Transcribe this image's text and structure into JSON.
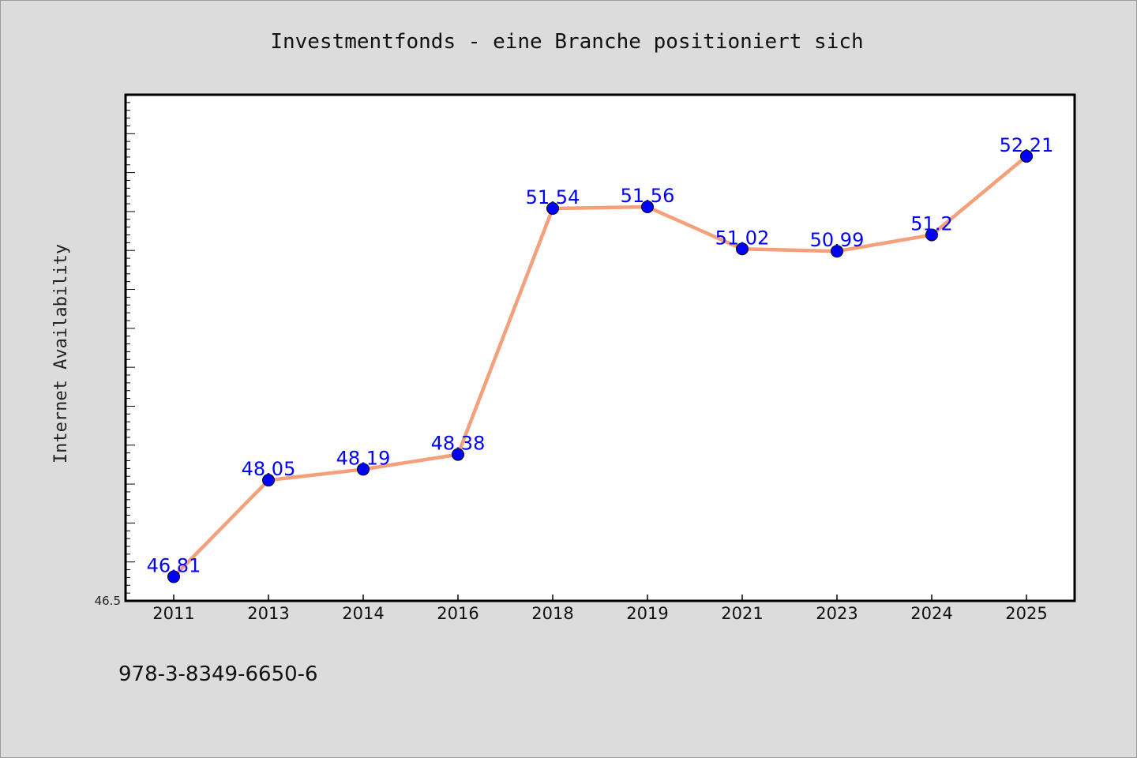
{
  "chart_data": {
    "type": "line",
    "title": "Investmentfonds - eine Branche positioniert sich",
    "xlabel": "",
    "ylabel": "Internet Availability",
    "categories": [
      "2011",
      "2013",
      "2014",
      "2016",
      "2018",
      "2019",
      "2021",
      "2023",
      "2024",
      "2025"
    ],
    "series": [
      {
        "values": [
          46.81,
          48.05,
          48.19,
          48.38,
          51.54,
          51.56,
          51.02,
          50.99,
          51.2,
          52.21
        ],
        "data_labels": [
          "46.81",
          "48.05",
          "48.19",
          "48.38",
          "51.54",
          "51.56",
          "51.02",
          "50.99",
          "51.2",
          "52.21"
        ]
      }
    ],
    "ylim": [
      46.5,
      53.0
    ],
    "y_tick_labels": [
      "46.5"
    ],
    "grid": false,
    "legend": "none",
    "colors": {
      "line": "#f4a07a",
      "marker": "#0000ff",
      "data_label": "#0000ff",
      "plot_background": "#ffffff",
      "figure_background": "#dcdcdc"
    }
  },
  "footer": {
    "isbn": "978-3-8349-6650-6"
  }
}
